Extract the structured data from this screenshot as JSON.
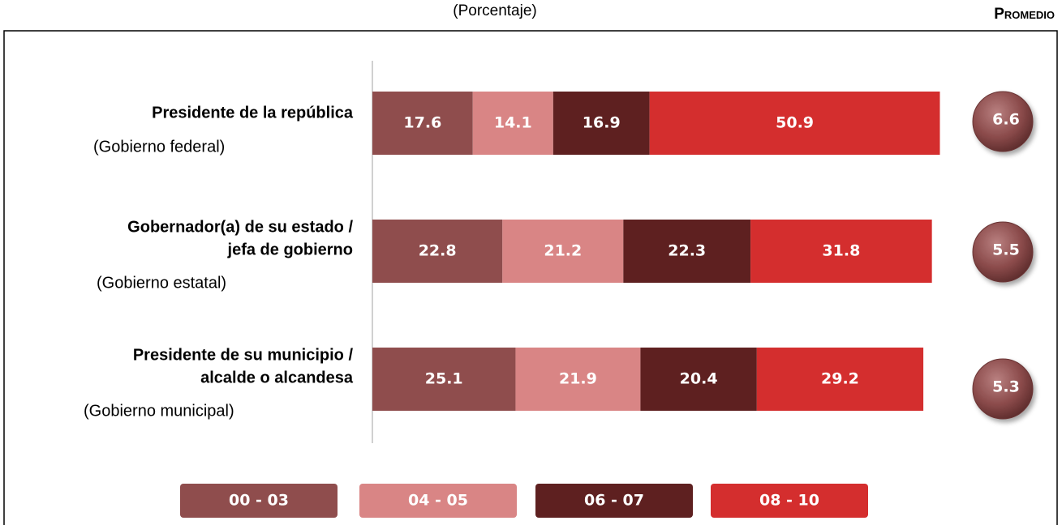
{
  "chart_data": {
    "type": "stacked_bar_horizontal",
    "subtitle": "(Porcentaje)",
    "average_label": "Promedio",
    "categories": [
      [
        "Presidente de la república"
      ],
      [
        "Gobernador(a) de su estado /",
        "jefa de gobierno"
      ],
      [
        "Presidente de su municipio /",
        "alcalde o alcandesa"
      ]
    ],
    "sublabels": [
      "(Gobierno federal)",
      "(Gobierno estatal)",
      "(Gobierno municipal)"
    ],
    "series": [
      {
        "name": "00 - 03",
        "color": "#8f4d4d",
        "values": [
          17.6,
          22.8,
          25.1
        ]
      },
      {
        "name": "04 - 05",
        "color": "#d98585",
        "values": [
          14.1,
          21.2,
          21.9
        ]
      },
      {
        "name": "06 - 07",
        "color": "#5e2020",
        "values": [
          16.9,
          22.3,
          20.4
        ]
      },
      {
        "name": "08 - 10",
        "color": "#d42e2e",
        "values": [
          50.9,
          31.8,
          29.2
        ]
      }
    ],
    "averages": [
      6.6,
      5.5,
      5.3
    ],
    "xlim": [
      0,
      100
    ]
  }
}
